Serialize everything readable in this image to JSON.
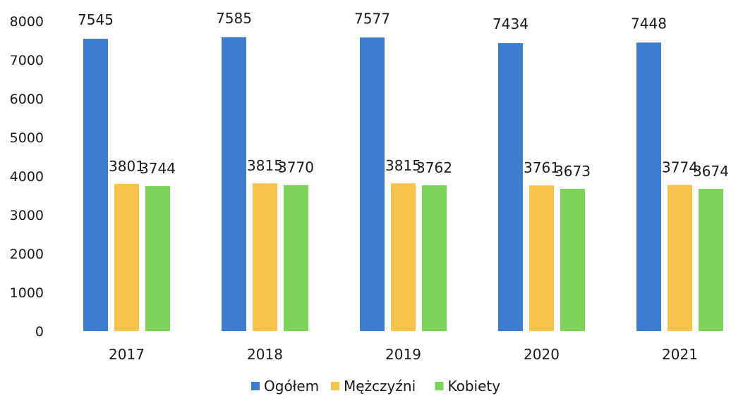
{
  "chart_data": {
    "type": "bar",
    "categories": [
      "2017",
      "2018",
      "2019",
      "2020",
      "2021"
    ],
    "series": [
      {
        "name": "Ogółem",
        "color": "#3d7dd1",
        "values": [
          7545,
          7585,
          7577,
          7434,
          7448
        ]
      },
      {
        "name": "Mężczyźni",
        "color": "#f7c34a",
        "values": [
          3801,
          3815,
          3815,
          3761,
          3774
        ]
      },
      {
        "name": "Kobiety",
        "color": "#7dd35a",
        "values": [
          3744,
          3770,
          3762,
          3673,
          3674
        ]
      }
    ],
    "y_ticks": [
      0,
      1000,
      2000,
      3000,
      4000,
      5000,
      6000,
      7000,
      8000
    ],
    "ylim": [
      0,
      8000
    ],
    "grid": false,
    "legend_position": "bottom-center",
    "data_labels": true
  }
}
